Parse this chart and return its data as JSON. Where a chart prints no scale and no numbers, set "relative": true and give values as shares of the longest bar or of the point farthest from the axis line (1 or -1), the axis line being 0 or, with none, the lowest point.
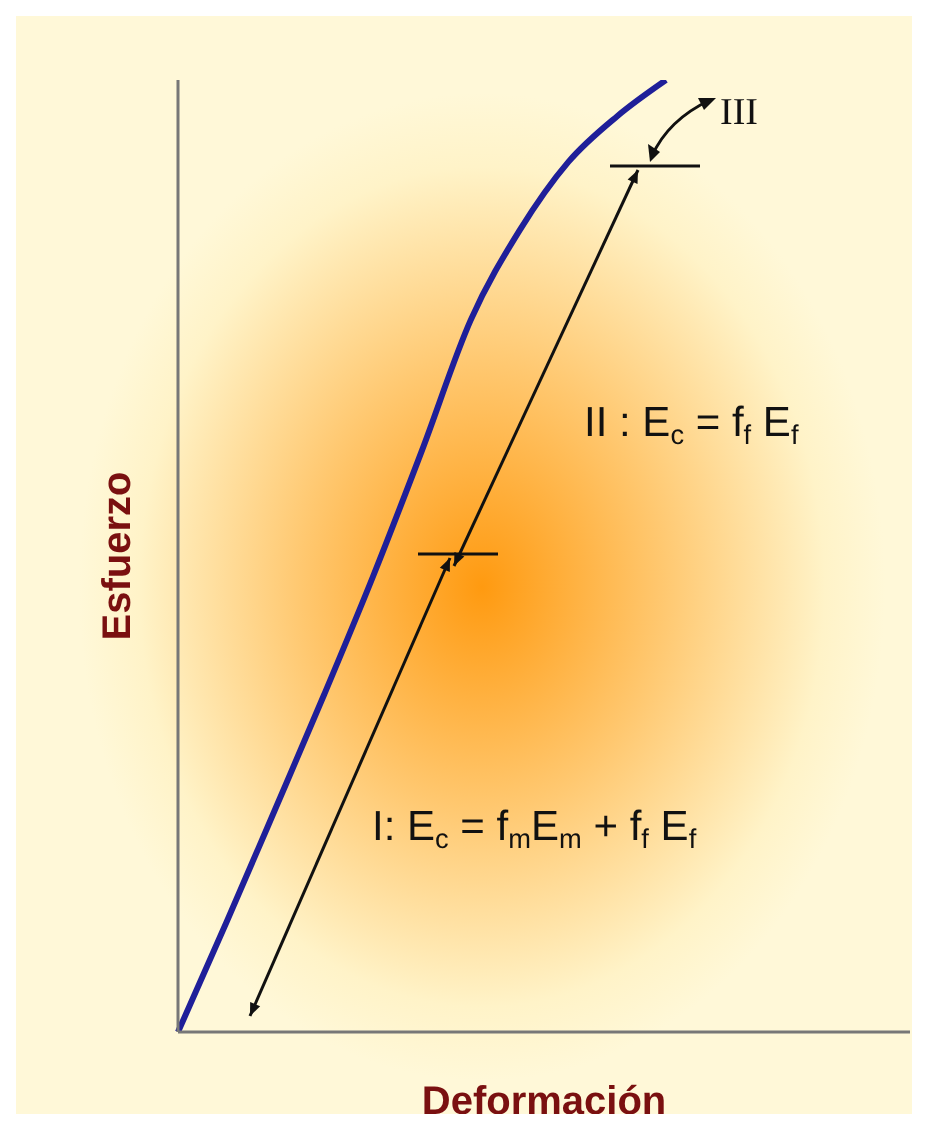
{
  "chart_data": {
    "type": "line",
    "xlabel": "Deformación",
    "ylabel": "Esfuerzo",
    "relative": true,
    "marker": "none",
    "categories": [
      null,
      null,
      null,
      null,
      null,
      null,
      null,
      null,
      null,
      null,
      null,
      null,
      null,
      null,
      null,
      null
    ],
    "series": [
      {
        "color": "#1f1f99",
        "values": [
          0,
          0.116,
          0.235,
          0.355,
          0.479,
          0.611,
          0.748,
          0.842,
          0.914,
          0.962,
          1,
          null,
          null,
          null,
          null,
          null
        ]
      }
    ],
    "annotations": [
      "I: E$_{c}$ = f$_{m}$E$_{m}$ + f$_{f}$ E$_{f}$",
      "II : E$_{c}$ = f$_{f}$ E$_{f}$",
      "III"
    ]
  }
}
